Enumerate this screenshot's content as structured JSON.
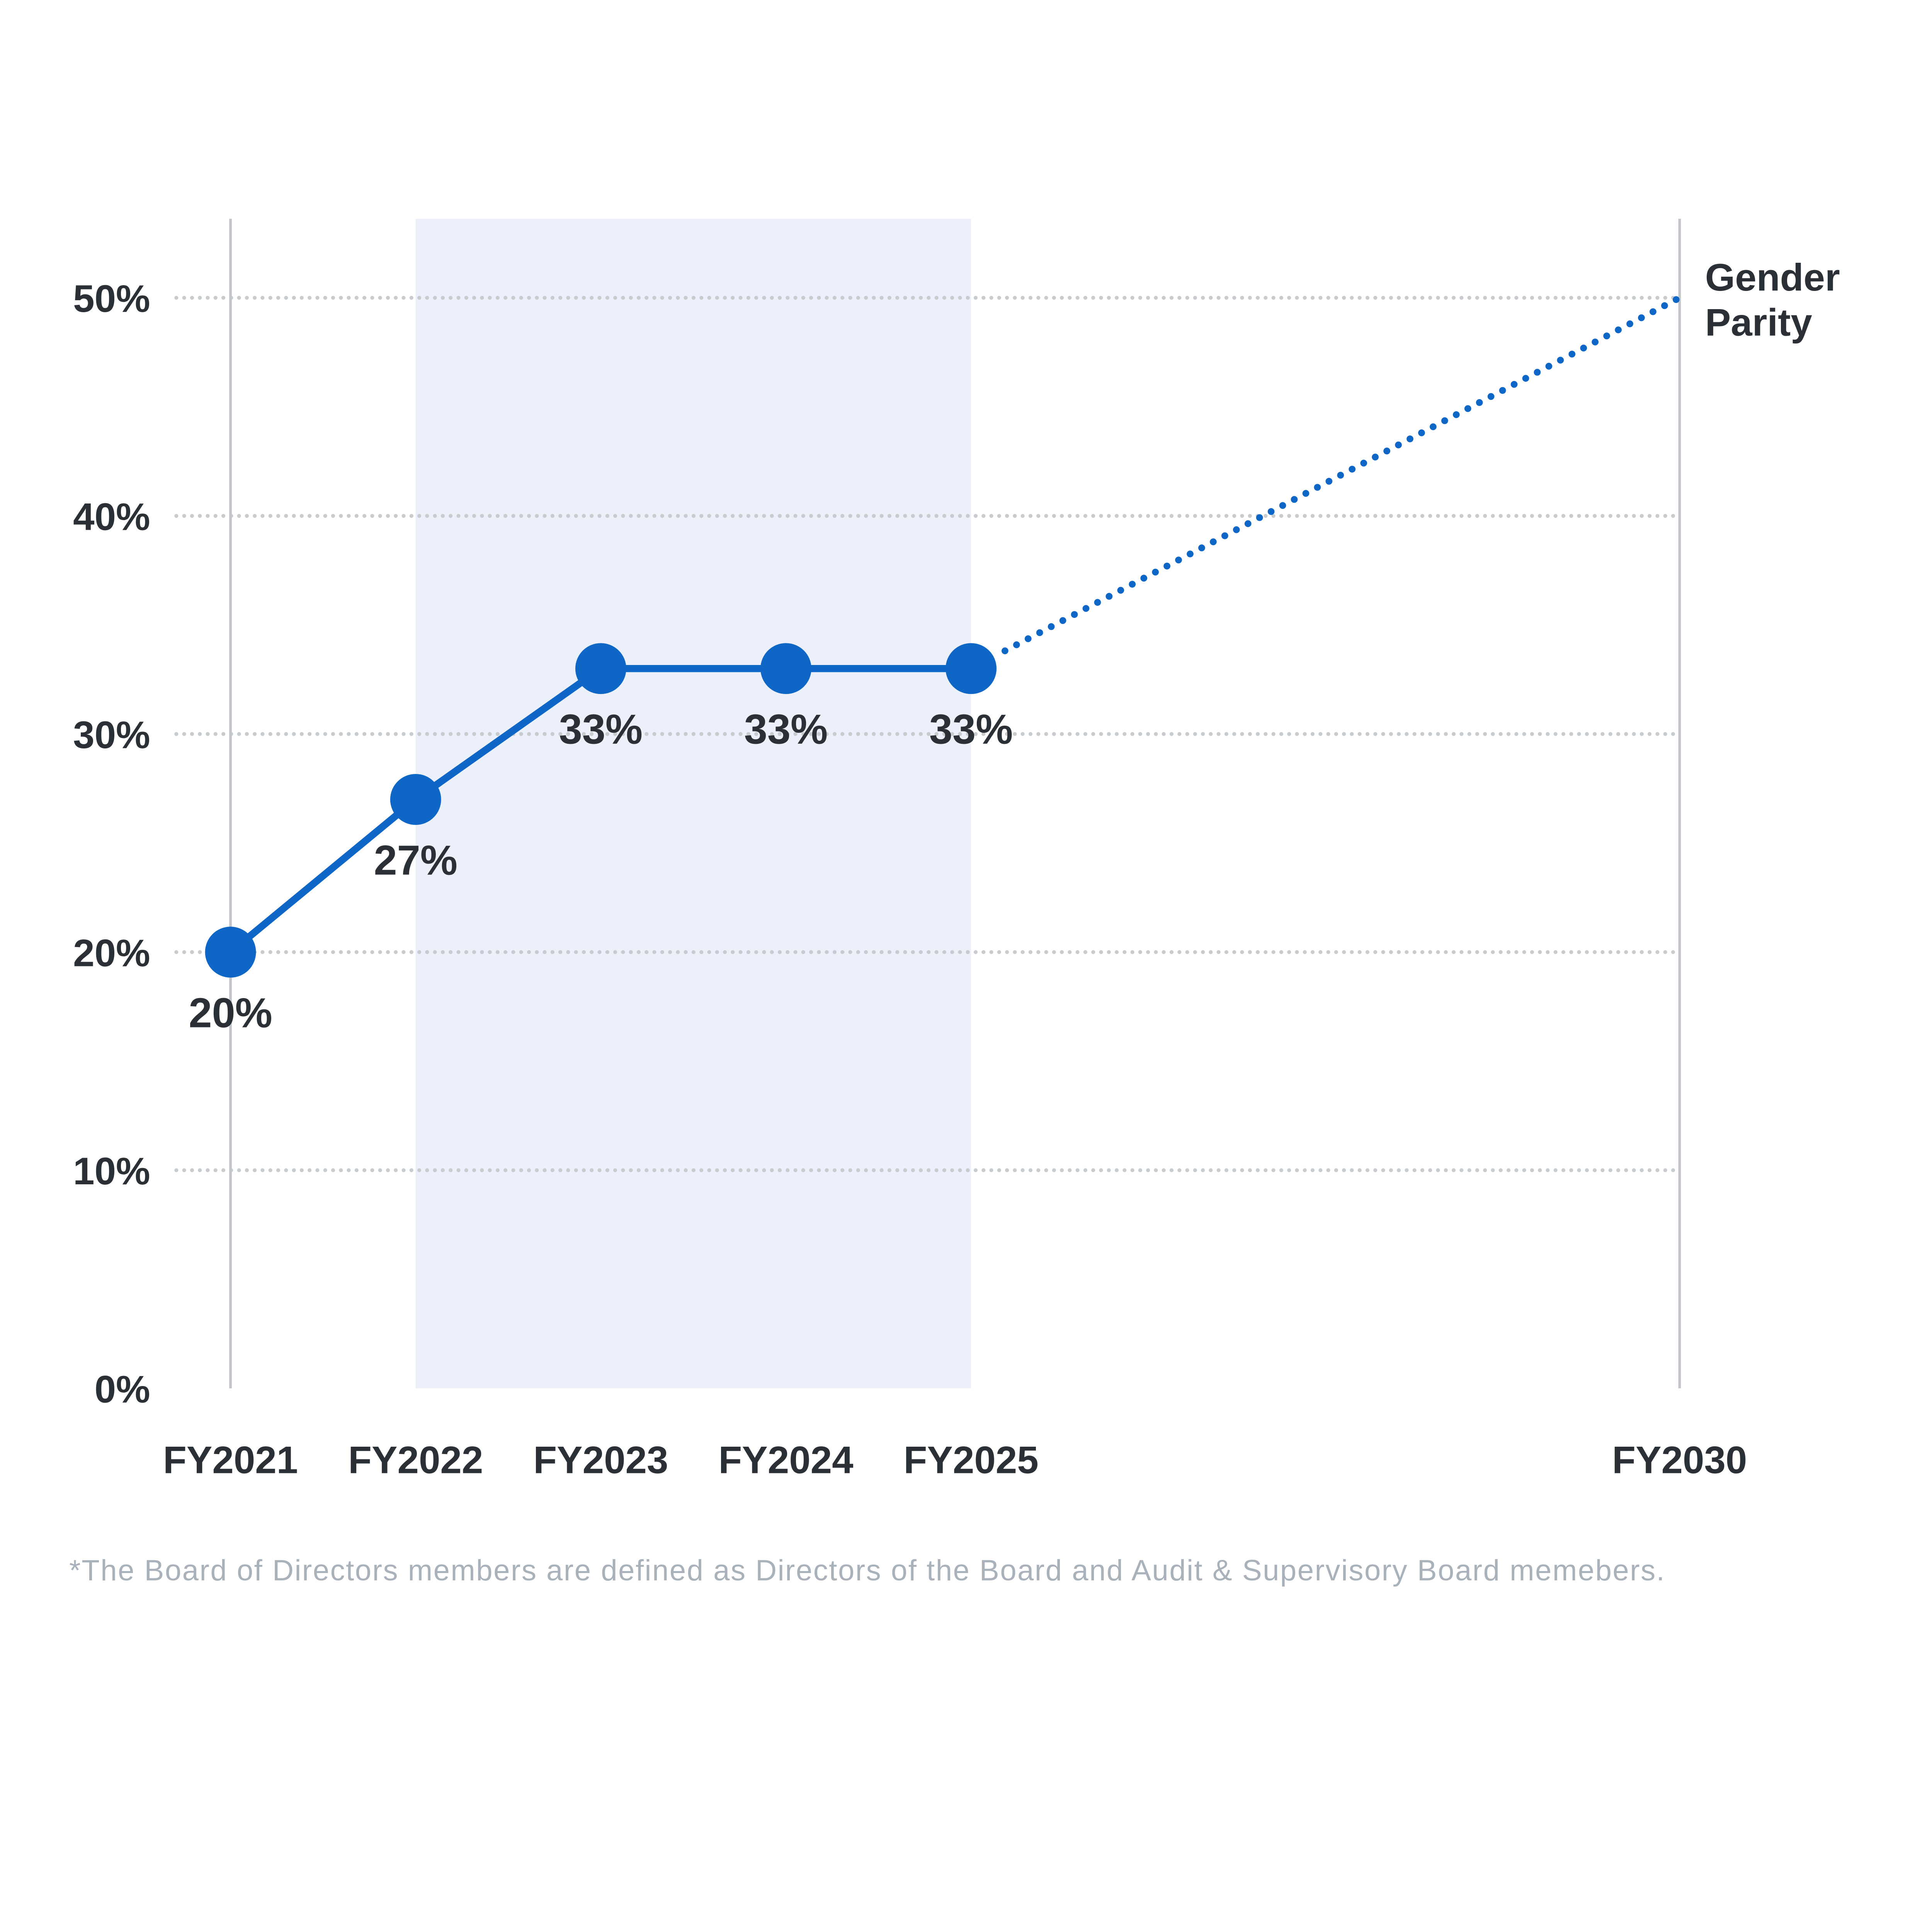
{
  "chart_data": {
    "type": "line",
    "x_axis": {
      "categories": [
        "FY2021",
        "FY2022",
        "FY2023",
        "FY2024",
        "FY2025"
      ],
      "far_category": "FY2030"
    },
    "y_axis": {
      "ticks": [
        0,
        10,
        20,
        30,
        40,
        50
      ],
      "tick_labels": [
        "0%",
        "10%",
        "20%",
        "30%",
        "40%",
        "50%"
      ],
      "range": [
        0,
        53.6
      ],
      "gridlines": "dotted"
    },
    "series": [
      {
        "values": [
          20,
          27,
          33,
          33,
          33
        ],
        "point_labels": [
          "20%",
          "27%",
          "33%",
          "33%",
          "33%"
        ]
      }
    ],
    "projection": {
      "from": "FY2025",
      "from_value": 33,
      "to": "FY2030",
      "to_value": 50,
      "style": "dotted"
    },
    "highlight_band": {
      "from": "FY2022",
      "to": "FY2025"
    },
    "target_label": {
      "line1": "Gender",
      "line2": "Parity"
    },
    "footnote": "*The Board of Directors members are defined as Directors of the Board and Audit & Supervisory Board memebers.",
    "colors": {
      "accent_blue": "#0E66C6",
      "highlight_band": "#EBF0FA",
      "gridline_gray": "#C9CCCF",
      "axis_gray": "#C2C6CA",
      "text_dark": "#2B3036",
      "footnote_gray": "#A9B1BA",
      "background": "#FFFFFF"
    }
  }
}
